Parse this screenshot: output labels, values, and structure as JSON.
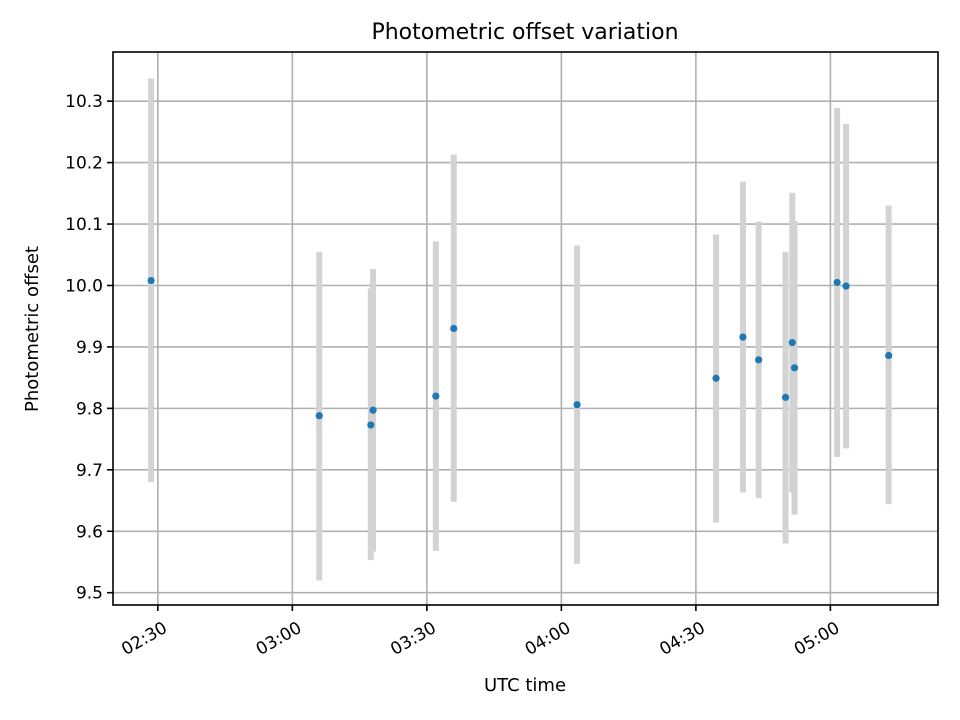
{
  "chart_data": {
    "type": "scatter",
    "title": "Photometric offset variation",
    "xlabel": "UTC time",
    "ylabel": "Photometric offset",
    "xlim": [
      "02:20:00",
      "05:24:00"
    ],
    "ylim": [
      9.48,
      10.38
    ],
    "grid": true,
    "x_ticks": [
      "02:30",
      "03:00",
      "03:30",
      "04:00",
      "04:30",
      "05:00"
    ],
    "y_ticks": [
      "9.5",
      "9.6",
      "9.7",
      "9.8",
      "9.9",
      "10.0",
      "10.1",
      "10.2",
      "10.3"
    ],
    "colors": {
      "point": "#1f77b4",
      "errorbar": "#d3d3d3",
      "grid": "#b0b0b0"
    },
    "points": [
      {
        "x": "02:28:30",
        "y": 10.008,
        "ylow": 9.68,
        "yhigh": 10.337
      },
      {
        "x": "03:06:00",
        "y": 9.788,
        "ylow": 9.52,
        "yhigh": 10.055
      },
      {
        "x": "03:17:30",
        "y": 9.773,
        "ylow": 9.553,
        "yhigh": 9.995
      },
      {
        "x": "03:18:00",
        "y": 9.797,
        "ylow": 9.567,
        "yhigh": 10.027
      },
      {
        "x": "03:32:00",
        "y": 9.82,
        "ylow": 9.568,
        "yhigh": 10.072
      },
      {
        "x": "03:36:00",
        "y": 9.93,
        "ylow": 9.648,
        "yhigh": 10.213
      },
      {
        "x": "04:03:30",
        "y": 9.806,
        "ylow": 9.547,
        "yhigh": 10.065
      },
      {
        "x": "04:34:30",
        "y": 9.849,
        "ylow": 9.614,
        "yhigh": 10.083
      },
      {
        "x": "04:40:30",
        "y": 9.916,
        "ylow": 9.663,
        "yhigh": 10.169
      },
      {
        "x": "04:44:00",
        "y": 9.879,
        "ylow": 9.654,
        "yhigh": 10.104
      },
      {
        "x": "04:50:00",
        "y": 9.818,
        "ylow": 9.58,
        "yhigh": 10.055
      },
      {
        "x": "04:51:30",
        "y": 9.907,
        "ylow": 9.663,
        "yhigh": 10.151
      },
      {
        "x": "04:52:00",
        "y": 9.866,
        "ylow": 9.627,
        "yhigh": 10.105
      },
      {
        "x": "05:01:30",
        "y": 10.005,
        "ylow": 9.721,
        "yhigh": 10.289
      },
      {
        "x": "05:03:30",
        "y": 9.999,
        "ylow": 9.735,
        "yhigh": 10.263
      },
      {
        "x": "05:13:00",
        "y": 9.886,
        "ylow": 9.644,
        "yhigh": 10.13
      }
    ]
  }
}
